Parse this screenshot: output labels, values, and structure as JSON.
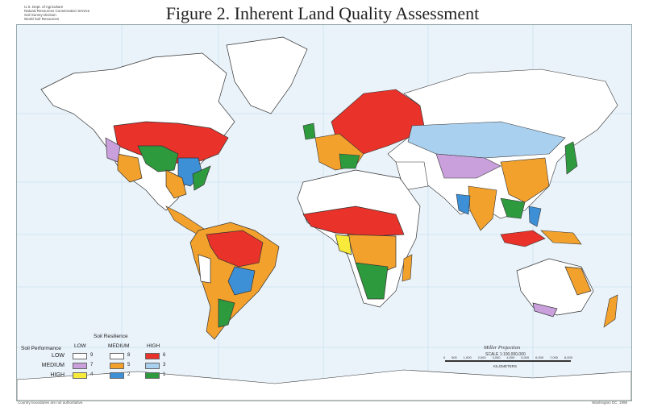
{
  "title": "Figure 2.  Inherent Land Quality Assessment",
  "agency_lines": [
    "U.S. Dept. of Agriculture",
    "Natural Resources Conservation Service",
    "Soil Survey Division",
    "World Soil Resources"
  ],
  "legend": {
    "resilience_label": "Soil Resilience",
    "performance_label": "Soil Performance",
    "columns": [
      "LOW",
      "MEDIUM",
      "HIGH"
    ],
    "rows": [
      {
        "label": "LOW",
        "classes": [
          "9",
          "8",
          "6"
        ]
      },
      {
        "label": "MEDIUM",
        "classes": [
          "7",
          "5",
          "3"
        ]
      },
      {
        "label": "HIGH",
        "classes": [
          "4",
          "2",
          "1"
        ]
      }
    ],
    "class_colors": {
      "1": "#2e9a3e",
      "2": "#3d8fd6",
      "3": "#a9d0ef",
      "4": "#f7ea3a",
      "5": "#f2a12c",
      "6": "#e8322a",
      "7": "#c9a0dc",
      "8": "#ffffff",
      "9": "#ffffff"
    }
  },
  "scale": {
    "projection": "Miller Projection",
    "scale_text": "SCALE 1:100,000,000",
    "ticks": [
      "0",
      "500",
      "1,000",
      "2,000",
      "3,000",
      "4,000",
      "5,000",
      "6,000",
      "7,000",
      "8,000"
    ],
    "unit": "KILOMETERS"
  },
  "footer_left": "Country boundaries are not authoritative.",
  "footer_right": "Washington DC, 1998",
  "colors": {
    "ocean": "#eaf3fa",
    "land_outline": "#333333",
    "land": "#ffffff"
  }
}
